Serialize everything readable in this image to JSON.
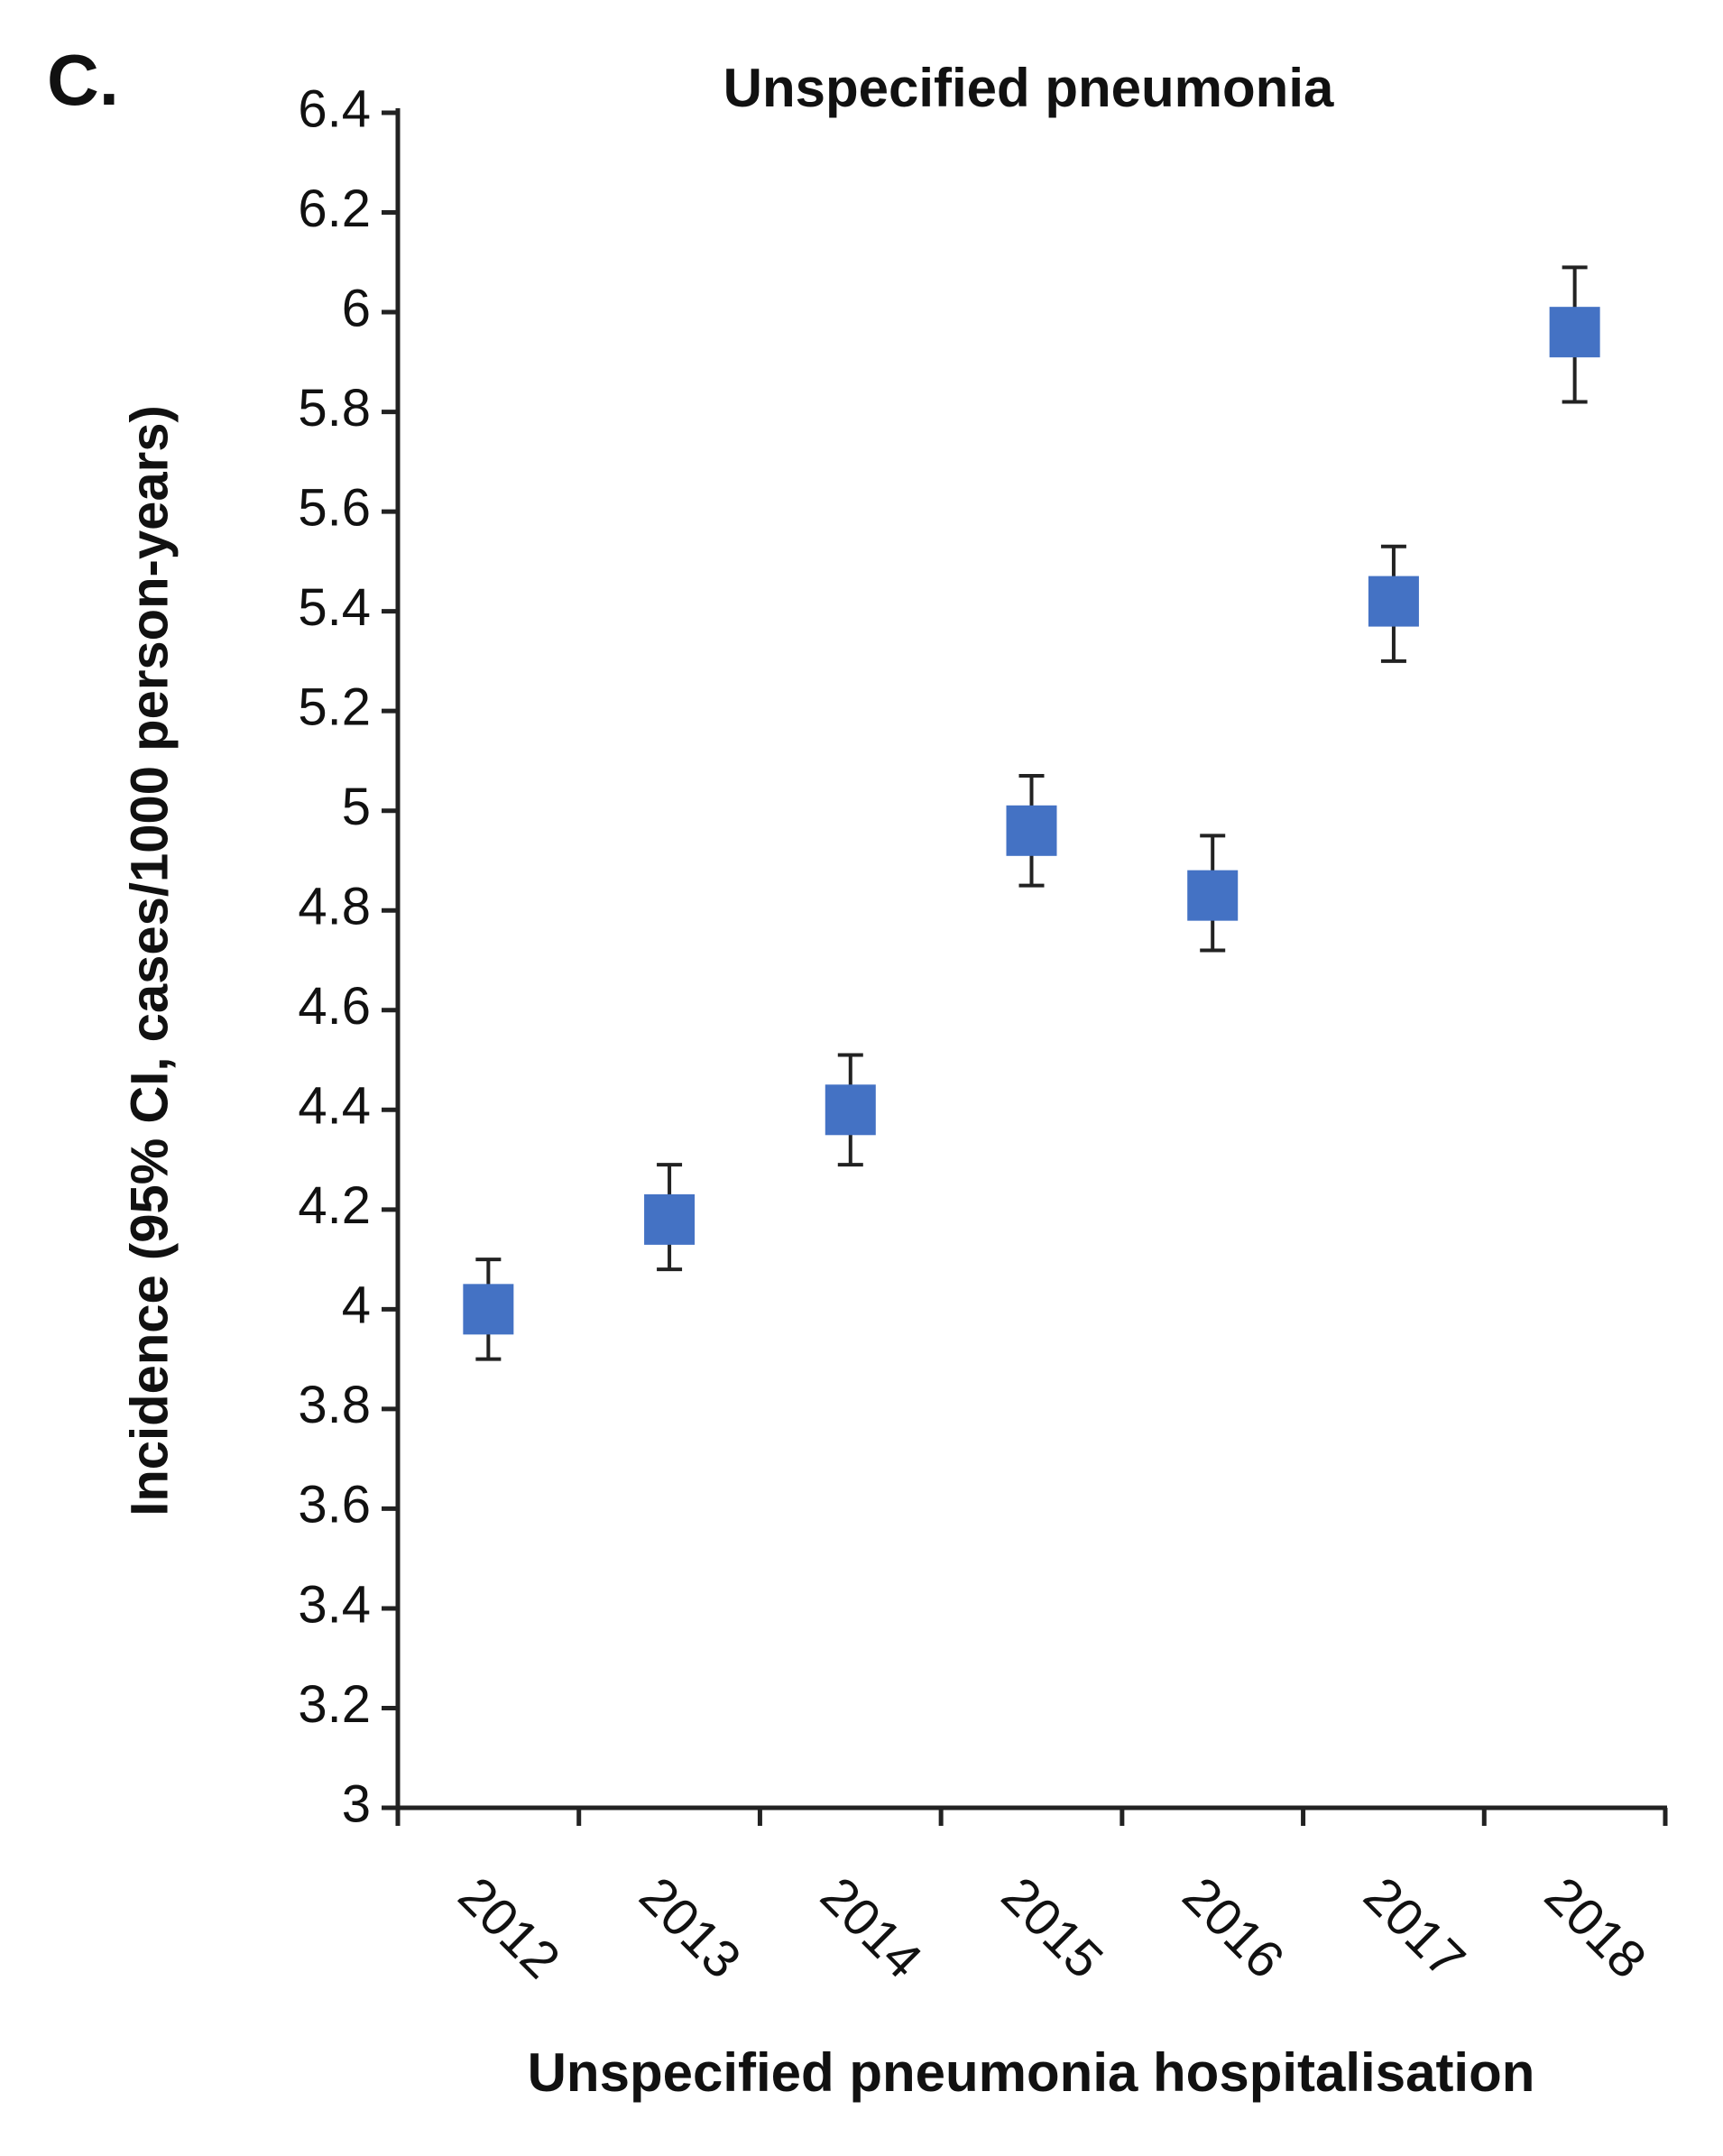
{
  "chart_data": {
    "type": "errorbar_scatter",
    "panel_label": "C.",
    "title": "Unspecified pneumonia",
    "x_label": "Unspecified pneumonia hospitalisation",
    "y_label": "Incidence (95% CI, cases/1000 person-years)",
    "categories": [
      "2012",
      "2013",
      "2014",
      "2015",
      "2016",
      "2017",
      "2018"
    ],
    "series": [
      {
        "color": "#4472c4",
        "values": [
          4.0,
          4.18,
          4.4,
          4.96,
          4.83,
          5.42,
          5.96
        ],
        "ci_lower": [
          3.9,
          4.08,
          4.29,
          4.85,
          4.72,
          5.3,
          5.82
        ],
        "ci_upper": [
          4.1,
          4.29,
          4.51,
          5.07,
          4.95,
          5.53,
          6.09
        ]
      }
    ],
    "ylim": [
      3,
      6.4
    ],
    "yticks": [
      3,
      3.2,
      3.4,
      3.6,
      3.8,
      4,
      4.2,
      4.4,
      4.6,
      4.8,
      5,
      5.2,
      5.4,
      5.6,
      5.8,
      6,
      6.2,
      6.4
    ],
    "grid": false
  }
}
